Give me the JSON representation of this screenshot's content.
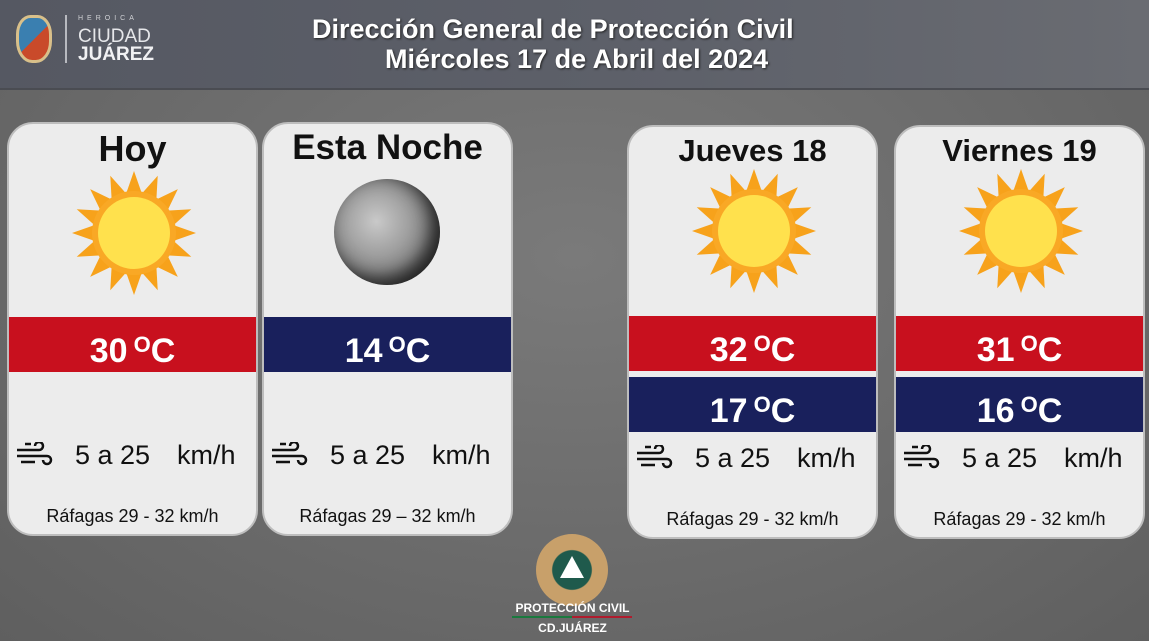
{
  "header": {
    "logo_small": "HEROICA",
    "logo_line1": "CIUDAD",
    "logo_line2": "JUÁREZ",
    "title": "Dirección General de Protección Civil",
    "date": "Miércoles 17 de Abril del 2024"
  },
  "cards": [
    {
      "title": "Hoy",
      "icon": "sun-icon",
      "max": "30",
      "min": null,
      "unit": "C",
      "wind": "5 a 25",
      "wind_unit": "km/h",
      "gusts_label": "Ráfagas",
      "gusts": "29 - 32",
      "gusts_unit": "km/h"
    },
    {
      "title": "Esta Noche",
      "icon": "moon-icon",
      "min": "14",
      "unit": "C",
      "wind": "5 a 25",
      "wind_unit": "km/h",
      "gusts_label": "Ráfagas",
      "gusts": "29 – 32",
      "gusts_unit": "km/h"
    },
    {
      "title": "Jueves 18",
      "icon": "sun-icon",
      "max": "32",
      "min": "17",
      "unit": "C",
      "wind": "5 a 25",
      "wind_unit": "km/h",
      "gusts_label": "Ráfagas",
      "gusts": "29 - 32",
      "gusts_unit": "km/h"
    },
    {
      "title": "Viernes 19",
      "icon": "sun-icon",
      "max": "31",
      "min": "16",
      "unit": "C",
      "wind": "5 a 25",
      "wind_unit": "km/h",
      "gusts_label": "Ráfagas",
      "gusts": "29 - 32",
      "gusts_unit": "km/h"
    }
  ],
  "footer": {
    "line1": "PROTECCIÓN CIVIL",
    "line2": "CD.JUÁREZ"
  },
  "colors": {
    "max_band": "#c8101e",
    "min_band": "#19205c",
    "sun": "#f7a21b"
  }
}
